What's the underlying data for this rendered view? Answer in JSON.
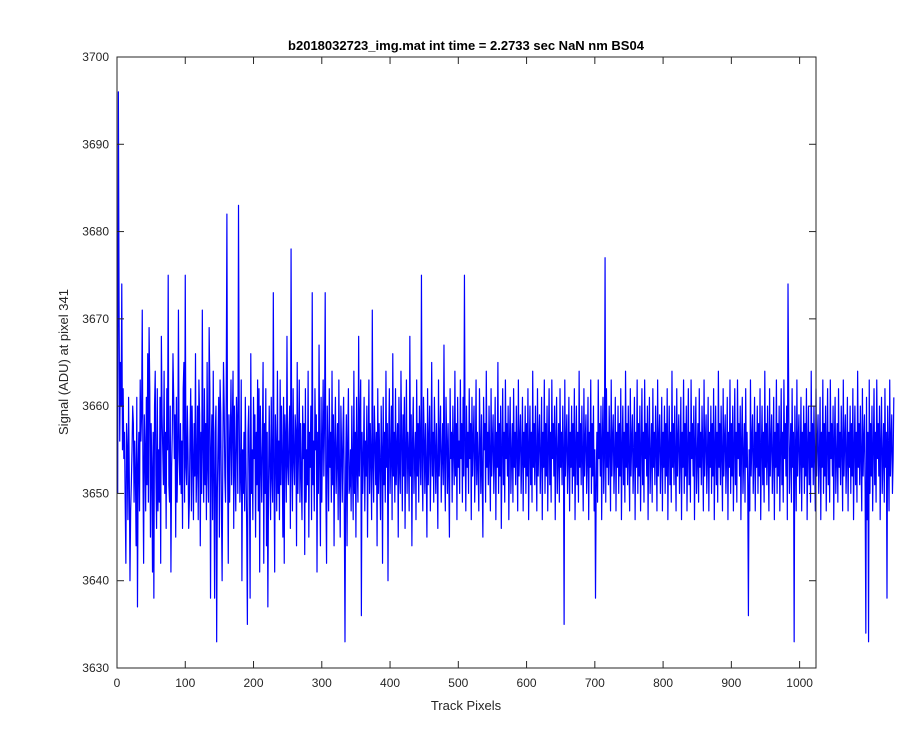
{
  "chart_data": {
    "type": "line",
    "title": "b2018032723_img.mat int time = 2.2733 sec  NaN nm BS04",
    "xlabel": "Track Pixels",
    "ylabel": "Signal (ADU) at pixel 341",
    "xlim": [
      0,
      1024
    ],
    "ylim": [
      3630,
      3700
    ],
    "xticks": [
      "0",
      "100",
      "200",
      "300",
      "400",
      "500",
      "600",
      "700",
      "800",
      "900",
      "1000"
    ],
    "yticks": [
      "3630",
      "3640",
      "3650",
      "3660",
      "3670",
      "3680",
      "3690",
      "3700"
    ],
    "grid": false,
    "legend": "none",
    "series": [
      {
        "color": "#0000ff",
        "x_start": 1,
        "x_step": 1,
        "values": [
          3650,
          3696,
          3672,
          3656,
          3665,
          3660,
          3674,
          3655,
          3662,
          3654,
          3657,
          3649,
          3642,
          3658,
          3655,
          3647,
          3661,
          3652,
          3640,
          3648,
          3651,
          3655,
          3660,
          3658,
          3649,
          3656,
          3652,
          3644,
          3661,
          3637,
          3653,
          3657,
          3648,
          3663,
          3656,
          3659,
          3671,
          3653,
          3642,
          3659,
          3655,
          3648,
          3661,
          3651,
          3666,
          3649,
          3669,
          3662,
          3645,
          3658,
          3653,
          3641,
          3657,
          3638,
          3660,
          3664,
          3652,
          3646,
          3662,
          3648,
          3655,
          3649,
          3661,
          3642,
          3668,
          3659,
          3655,
          3651,
          3664,
          3650,
          3657,
          3646,
          3662,
          3655,
          3675,
          3651,
          3649,
          3660,
          3641,
          3653,
          3657,
          3666,
          3661,
          3654,
          3659,
          3645,
          3661,
          3649,
          3654,
          3671,
          3655,
          3651,
          3658,
          3650,
          3656,
          3646,
          3662,
          3665,
          3649,
          3675,
          3653,
          3651,
          3660,
          3655,
          3646,
          3649,
          3657,
          3662,
          3648,
          3660,
          3654,
          3647,
          3658,
          3652,
          3666,
          3649,
          3653,
          3660,
          3647,
          3663,
          3659,
          3644,
          3657,
          3650,
          3671,
          3655,
          3649,
          3662,
          3651,
          3658,
          3647,
          3665,
          3653,
          3649,
          3669,
          3662,
          3638,
          3655,
          3659,
          3647,
          3664,
          3652,
          3638,
          3657,
          3660,
          3633,
          3650,
          3656,
          3661,
          3645,
          3663,
          3659,
          3648,
          3640,
          3654,
          3665,
          3660,
          3652,
          3649,
          3661,
          3682,
          3653,
          3642,
          3659,
          3649,
          3656,
          3663,
          3651,
          3658,
          3664,
          3646,
          3660,
          3653,
          3648,
          3661,
          3657,
          3650,
          3683,
          3659,
          3649,
          3652,
          3663,
          3640,
          3655,
          3650,
          3657,
          3648,
          3661,
          3653,
          3646,
          3635,
          3657,
          3660,
          3652,
          3638,
          3666,
          3650,
          3655,
          3647,
          3661,
          3654,
          3659,
          3645,
          3657,
          3651,
          3663,
          3648,
          3662,
          3641,
          3660,
          3654,
          3649,
          3656,
          3665,
          3642,
          3658,
          3650,
          3662,
          3644,
          3657,
          3637,
          3651,
          3660,
          3653,
          3647,
          3661,
          3652,
          3649,
          3673,
          3653,
          3641,
          3659,
          3655,
          3648,
          3664,
          3650,
          3656,
          3647,
          3663,
          3651,
          3660,
          3654,
          3645,
          3661,
          3642,
          3659,
          3656,
          3649,
          3668,
          3653,
          3651,
          3657,
          3660,
          3646,
          3678,
          3653,
          3648,
          3662,
          3654,
          3651,
          3659,
          3657,
          3644,
          3665,
          3650,
          3655,
          3663,
          3649,
          3658,
          3652,
          3647,
          3660,
          3654,
          3658,
          3643,
          3662,
          3649,
          3655,
          3651,
          3664,
          3645,
          3657,
          3653,
          3660,
          3647,
          3673,
          3651,
          3656,
          3648,
          3662,
          3655,
          3659,
          3641,
          3657,
          3650,
          3667,
          3653,
          3644,
          3661,
          3649,
          3656,
          3663,
          3652,
          3658,
          3673,
          3650,
          3642,
          3660,
          3655,
          3648,
          3662,
          3653,
          3657,
          3649,
          3664,
          3651,
          3659,
          3644,
          3656,
          3661,
          3650,
          3654,
          3658,
          3647,
          3663,
          3652,
          3645,
          3660,
          3655,
          3649,
          3657,
          3661,
          3648,
          3633,
          3653,
          3659,
          3644,
          3656,
          3662,
          3650,
          3651,
          3655,
          3648,
          3660,
          3653,
          3647,
          3664,
          3650,
          3657,
          3645,
          3661,
          3653,
          3649,
          3668,
          3652,
          3658,
          3663,
          3636,
          3657,
          3650,
          3654,
          3661,
          3648,
          3656,
          3652,
          3660,
          3645,
          3655,
          3663,
          3650,
          3658,
          3654,
          3647,
          3671,
          3653,
          3649,
          3660,
          3656,
          3651,
          3657,
          3644,
          3662,
          3650,
          3658,
          3653,
          3647,
          3660,
          3655,
          3642,
          3661,
          3651,
          3657,
          3649,
          3664,
          3653,
          3658,
          3640,
          3656,
          3662,
          3650,
          3654,
          3660,
          3647,
          3666,
          3652,
          3657,
          3649,
          3662,
          3651,
          3655,
          3658,
          3645,
          3661,
          3653,
          3650,
          3664,
          3656,
          3648,
          3659,
          3652,
          3661,
          3646,
          3655,
          3663,
          3650,
          3657,
          3654,
          3648,
          3668,
          3652,
          3659,
          3644,
          3656,
          3661,
          3650,
          3654,
          3657,
          3647,
          3663,
          3652,
          3658,
          3649,
          3660,
          3655,
          3651,
          3675,
          3653,
          3648,
          3661,
          3656,
          3650,
          3658,
          3653,
          3645,
          3662,
          3651,
          3656,
          3660,
          3648,
          3654,
          3665,
          3652,
          3657,
          3649,
          3661,
          3655,
          3650,
          3658,
          3653,
          3646,
          3663,
          3652,
          3656,
          3660,
          3649,
          3654,
          3658,
          3651,
          3667,
          3653,
          3648,
          3661,
          3656,
          3650,
          3658,
          3652,
          3645,
          3662,
          3654,
          3657,
          3649,
          3660,
          3655,
          3651,
          3664,
          3652,
          3658,
          3647,
          3661,
          3653,
          3656,
          3650,
          3663,
          3654,
          3658,
          3649,
          3661,
          3652,
          3675,
          3655,
          3648,
          3660,
          3653,
          3657,
          3650,
          3662,
          3654,
          3658,
          3647,
          3661,
          3652,
          3656,
          3660,
          3649,
          3654,
          3663,
          3651,
          3657,
          3653,
          3648,
          3662,
          3656,
          3650,
          3659,
          3652,
          3645,
          3661,
          3655,
          3658,
          3649,
          3664,
          3653,
          3657,
          3651,
          3660,
          3654,
          3648,
          3662,
          3652,
          3656,
          3659,
          3650,
          3654,
          3661,
          3647,
          3657,
          3653,
          3665,
          3650,
          3658,
          3652,
          3660,
          3646,
          3655,
          3662,
          3651,
          3657,
          3649,
          3663,
          3654,
          3658,
          3652,
          3660,
          3647,
          3656,
          3661,
          3650,
          3654,
          3658,
          3649,
          3662,
          3653,
          3657,
          3651,
          3660,
          3655,
          3648,
          3663,
          3652,
          3656,
          3659,
          3650,
          3654,
          3661,
          3648,
          3657,
          3653,
          3660,
          3650,
          3658,
          3652,
          3662,
          3647,
          3655,
          3660,
          3651,
          3657,
          3649,
          3664,
          3653,
          3658,
          3651,
          3660,
          3654,
          3648,
          3662,
          3652,
          3656,
          3659,
          3650,
          3654,
          3661,
          3647,
          3657,
          3653,
          3663,
          3650,
          3658,
          3652,
          3660,
          3648,
          3655,
          3662,
          3651,
          3657,
          3649,
          3663,
          3654,
          3658,
          3652,
          3660,
          3647,
          3656,
          3661,
          3650,
          3654,
          3658,
          3649,
          3662,
          3653,
          3657,
          3651,
          3660,
          3655,
          3635,
          3663,
          3652,
          3656,
          3659,
          3650,
          3654,
          3661,
          3648,
          3657,
          3653,
          3660,
          3650,
          3658,
          3652,
          3662,
          3647,
          3655,
          3660,
          3651,
          3657,
          3649,
          3664,
          3653,
          3658,
          3651,
          3660,
          3654,
          3648,
          3662,
          3652,
          3656,
          3659,
          3650,
          3654,
          3661,
          3647,
          3657,
          3653,
          3663,
          3650,
          3658,
          3652,
          3660,
          3648,
          3655,
          3638,
          3651,
          3657,
          3649,
          3663,
          3654,
          3658,
          3652,
          3660,
          3647,
          3656,
          3661,
          3650,
          3654,
          3677,
          3649,
          3662,
          3653,
          3657,
          3651,
          3660,
          3655,
          3648,
          3663,
          3652,
          3656,
          3659,
          3650,
          3654,
          3661,
          3648,
          3657,
          3653,
          3660,
          3650,
          3658,
          3652,
          3662,
          3647,
          3655,
          3660,
          3651,
          3657,
          3649,
          3664,
          3653,
          3658,
          3651,
          3660,
          3654,
          3648,
          3662,
          3652,
          3656,
          3659,
          3650,
          3654,
          3661,
          3647,
          3657,
          3653,
          3663,
          3650,
          3658,
          3652,
          3660,
          3648,
          3655,
          3662,
          3651,
          3657,
          3649,
          3663,
          3654,
          3658,
          3652,
          3660,
          3647,
          3656,
          3661,
          3650,
          3654,
          3658,
          3649,
          3662,
          3653,
          3657,
          3651,
          3660,
          3655,
          3648,
          3663,
          3652,
          3656,
          3659,
          3650,
          3654,
          3661,
          3648,
          3657,
          3653,
          3660,
          3650,
          3658,
          3652,
          3662,
          3647,
          3655,
          3660,
          3651,
          3657,
          3649,
          3664,
          3653,
          3658,
          3651,
          3660,
          3654,
          3648,
          3662,
          3652,
          3656,
          3659,
          3650,
          3654,
          3661,
          3647,
          3657,
          3653,
          3663,
          3650,
          3658,
          3652,
          3660,
          3648,
          3655,
          3662,
          3651,
          3657,
          3649,
          3663,
          3654,
          3658,
          3652,
          3660,
          3647,
          3656,
          3661,
          3650,
          3654,
          3658,
          3649,
          3662,
          3653,
          3657,
          3651,
          3660,
          3655,
          3648,
          3663,
          3652,
          3656,
          3659,
          3650,
          3654,
          3661,
          3648,
          3657,
          3653,
          3660,
          3650,
          3658,
          3652,
          3662,
          3647,
          3655,
          3660,
          3651,
          3657,
          3649,
          3664,
          3653,
          3658,
          3651,
          3660,
          3654,
          3648,
          3662,
          3652,
          3656,
          3659,
          3650,
          3654,
          3661,
          3647,
          3657,
          3653,
          3663,
          3650,
          3658,
          3652,
          3660,
          3648,
          3655,
          3662,
          3651,
          3657,
          3649,
          3663,
          3654,
          3658,
          3652,
          3660,
          3647,
          3656,
          3661,
          3650,
          3654,
          3658,
          3649,
          3662,
          3653,
          3657,
          3651,
          3636,
          3655,
          3648,
          3663,
          3652,
          3656,
          3659,
          3650,
          3654,
          3661,
          3648,
          3657,
          3653,
          3660,
          3650,
          3658,
          3652,
          3662,
          3647,
          3655,
          3660,
          3651,
          3657,
          3649,
          3664,
          3653,
          3658,
          3651,
          3660,
          3654,
          3648,
          3662,
          3652,
          3656,
          3659,
          3650,
          3654,
          3661,
          3647,
          3657,
          3653,
          3663,
          3650,
          3658,
          3652,
          3660,
          3648,
          3655,
          3662,
          3651,
          3657,
          3649,
          3663,
          3654,
          3658,
          3652,
          3660,
          3647,
          3674,
          3661,
          3650,
          3654,
          3658,
          3649,
          3662,
          3653,
          3657,
          3633,
          3660,
          3655,
          3648,
          3663,
          3652,
          3656,
          3659,
          3650,
          3654,
          3661,
          3648,
          3657,
          3653,
          3660,
          3650,
          3658,
          3652,
          3662,
          3647,
          3655,
          3660,
          3651,
          3657,
          3649,
          3664,
          3653,
          3658,
          3651,
          3660,
          3654,
          3648,
          3662,
          3652,
          3656,
          3659,
          3650,
          3654,
          3661,
          3647,
          3657,
          3653,
          3663,
          3650,
          3658,
          3652,
          3660,
          3648,
          3655,
          3662,
          3651,
          3657,
          3649,
          3663,
          3654,
          3658,
          3652,
          3660,
          3647,
          3656,
          3661,
          3650,
          3654,
          3658,
          3649,
          3662,
          3653,
          3657,
          3651,
          3660,
          3655,
          3648,
          3663,
          3652,
          3656,
          3659,
          3650,
          3654,
          3661,
          3648,
          3657,
          3653,
          3660,
          3650,
          3658,
          3652,
          3662,
          3647,
          3655,
          3660,
          3651,
          3657,
          3649,
          3664,
          3653,
          3658,
          3651,
          3660,
          3654,
          3648,
          3662,
          3652,
          3656,
          3659,
          3650,
          3634,
          3661,
          3647,
          3657,
          3633,
          3663,
          3650,
          3658,
          3652,
          3660,
          3648,
          3655,
          3662,
          3651,
          3657,
          3649,
          3663,
          3654,
          3658,
          3652,
          3660,
          3647,
          3656,
          3661,
          3650,
          3654,
          3658,
          3649,
          3662,
          3653,
          3657,
          3638,
          3660,
          3655,
          3648,
          3663,
          3652,
          3656,
          3659,
          3650,
          3654,
          3661
        ]
      }
    ]
  }
}
